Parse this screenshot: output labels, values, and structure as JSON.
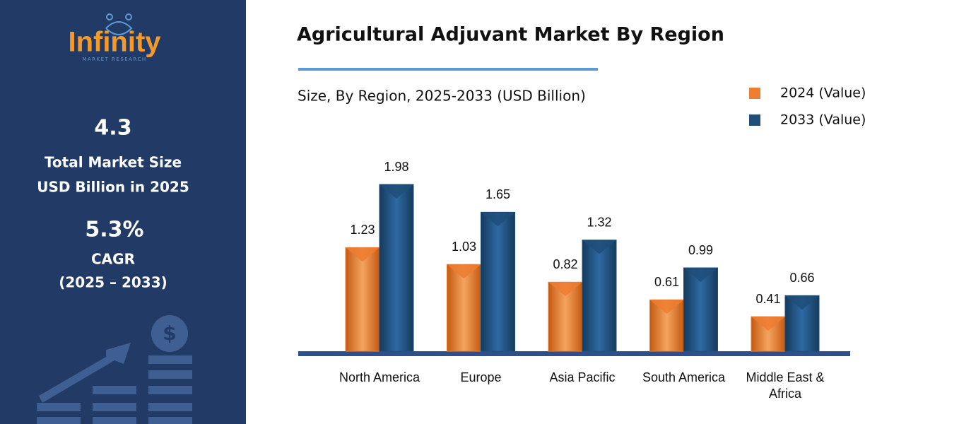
{
  "sidebar": {
    "logo": "Infinity",
    "logo_tagline": "MARKET RESEARCH",
    "market_size": "4.3",
    "market_size_label_1": "Total Market Size",
    "market_size_label_2": "USD Billion in 2025",
    "cagr": "5.3%",
    "cagr_label": "CAGR",
    "cagr_period": "(2025 – 2033)"
  },
  "chart_data": {
    "type": "bar",
    "title": "Agricultural Adjuvant Market By Region",
    "subtitle": "Size, By Region, 2025-2033 (USD Billion)",
    "categories": [
      "North America",
      "Europe",
      "Asia Pacific",
      "South America",
      "Middle East & Africa"
    ],
    "series": [
      {
        "name": "2024 (Value)",
        "color": "#ed7d31",
        "values": [
          1.23,
          1.03,
          0.82,
          0.61,
          0.41
        ]
      },
      {
        "name": "2033 (Value)",
        "color": "#1f4e79",
        "values": [
          1.98,
          1.65,
          1.32,
          0.99,
          0.66
        ]
      }
    ],
    "legend": "top-right"
  }
}
